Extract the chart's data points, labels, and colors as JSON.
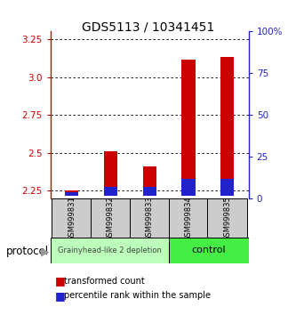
{
  "title": "GDS5113 / 10341451",
  "samples": [
    "GSM999831",
    "GSM999832",
    "GSM999833",
    "GSM999834",
    "GSM999835"
  ],
  "transformed_counts": [
    2.255,
    2.51,
    2.41,
    3.115,
    3.135
  ],
  "percentile_ranks": [
    2,
    5,
    5,
    10,
    10
  ],
  "ylim_left": [
    2.2,
    3.3
  ],
  "ylim_right": [
    0,
    100
  ],
  "yticks_left": [
    2.25,
    2.5,
    2.75,
    3.0,
    3.25
  ],
  "yticks_right": [
    0,
    25,
    50,
    75,
    100
  ],
  "bar_width": 0.35,
  "red_color": "#cc0000",
  "blue_color": "#2222cc",
  "baseline": 2.22,
  "group1_label": "Grainyhead-like 2 depletion",
  "group2_label": "control",
  "group1_color": "#bbffbb",
  "group2_color": "#44ee44",
  "protocol_label": "protocol",
  "legend_red": "transformed count",
  "legend_blue": "percentile rank within the sample",
  "bg_color": "#ffffff"
}
